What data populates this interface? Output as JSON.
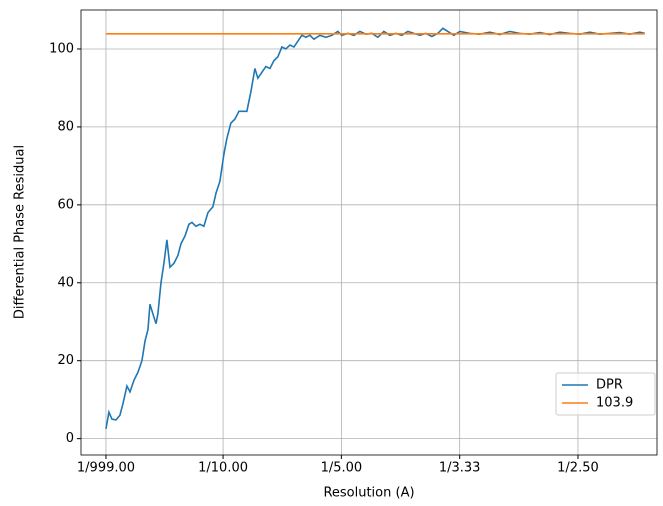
{
  "chart_data": {
    "type": "line",
    "xlabel": "Resolution (A)",
    "ylabel": "Differential Phase Residual",
    "xlim": [
      -0.0201,
      0.4668
    ],
    "ylim": [
      -4.2,
      110
    ],
    "xticks": [
      {
        "value": 0.001,
        "label": "1/999.00"
      },
      {
        "value": 0.1,
        "label": "1/10.00"
      },
      {
        "value": 0.2,
        "label": "1/5.00"
      },
      {
        "value": 0.3,
        "label": "1/3.33"
      },
      {
        "value": 0.4,
        "label": "1/2.50"
      }
    ],
    "yticks": [
      0,
      20,
      40,
      60,
      80,
      100
    ],
    "grid": true,
    "legend": "lower right",
    "series": [
      {
        "name": "DPR",
        "color": "#1f77b4",
        "x": [
          0.001,
          0.0035,
          0.0061,
          0.0095,
          0.0128,
          0.0154,
          0.0187,
          0.0213,
          0.0247,
          0.028,
          0.0314,
          0.034,
          0.0365,
          0.0382,
          0.0407,
          0.0433,
          0.0449,
          0.0475,
          0.05,
          0.0525,
          0.0551,
          0.0585,
          0.0618,
          0.0644,
          0.0678,
          0.0711,
          0.0737,
          0.0771,
          0.0804,
          0.0838,
          0.0872,
          0.0914,
          0.094,
          0.0973,
          0.1007,
          0.1032,
          0.1066,
          0.11,
          0.1134,
          0.1168,
          0.1201,
          0.1235,
          0.1269,
          0.1294,
          0.1328,
          0.1362,
          0.1396,
          0.143,
          0.1463,
          0.1497,
          0.1531,
          0.1565,
          0.1599,
          0.1632,
          0.1666,
          0.17,
          0.1734,
          0.1768,
          0.1818,
          0.1869,
          0.192,
          0.197,
          0.2004,
          0.2055,
          0.2106,
          0.2156,
          0.2207,
          0.2258,
          0.2308,
          0.2359,
          0.241,
          0.246,
          0.2511,
          0.2562,
          0.2613,
          0.2663,
          0.2714,
          0.2765,
          0.2815,
          0.2858,
          0.29,
          0.2951,
          0.3001,
          0.3086,
          0.317,
          0.3255,
          0.3339,
          0.3424,
          0.3508,
          0.3593,
          0.3677,
          0.3762,
          0.3846,
          0.3931,
          0.4015,
          0.41,
          0.4184,
          0.4269,
          0.4353,
          0.4438,
          0.4522,
          0.4565
        ],
        "values": [
          2.5,
          6.8,
          5,
          4.8,
          6,
          9,
          13.5,
          12,
          15,
          17,
          20,
          25,
          28,
          34.5,
          32,
          29.5,
          32,
          40,
          45,
          51,
          44,
          45,
          47,
          50,
          52,
          55,
          55.5,
          54.5,
          55,
          54.5,
          58,
          59.5,
          63,
          66,
          73,
          77,
          81,
          82,
          84,
          84,
          84,
          89,
          95,
          92.5,
          94,
          95.5,
          95,
          97,
          98,
          100.5,
          100,
          101,
          100.5,
          102,
          103.5,
          103,
          103.5,
          102.5,
          103.5,
          103,
          103.5,
          104.5,
          103.5,
          104,
          103.5,
          104.5,
          103.8,
          104,
          103,
          104.5,
          103.5,
          104,
          103.5,
          104.5,
          104,
          103.5,
          104,
          103.2,
          104,
          105.3,
          104.5,
          103.5,
          104.5,
          104,
          103.8,
          104.3,
          103.7,
          104.5,
          104,
          103.8,
          104.2,
          103.7,
          104.3,
          104,
          103.8,
          104.3,
          103.8,
          104,
          104.2,
          103.8,
          104.3,
          104
        ]
      },
      {
        "name": "103.9",
        "color": "#ff7f0e",
        "x": [
          0.001,
          0.4565
        ],
        "values": [
          103.9,
          103.9
        ]
      }
    ]
  }
}
